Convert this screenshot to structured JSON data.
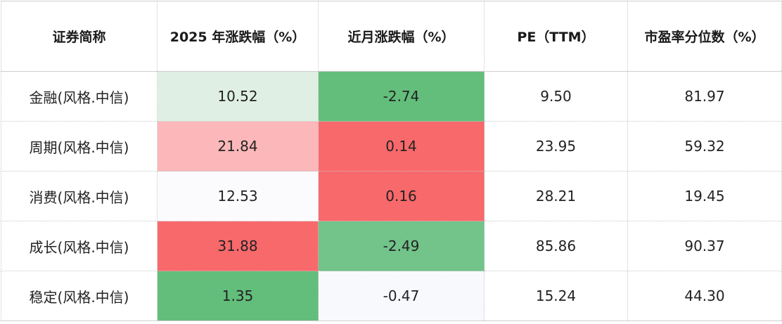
{
  "headers": [
    "证券简称",
    "2025 年涨跌幅（%）",
    "近月涨跌幅（%）",
    "PE（TTM）",
    "市盈率分位数（%）"
  ],
  "rows": [
    {
      "name": "金融(风格.中信)",
      "ytd": "10.52",
      "month": "-2.74",
      "pe": "9.50",
      "pct": "81.97",
      "ytd_color": "#e0efe4",
      "month_color": "#63be7b"
    },
    {
      "name": "周期(风格.中信)",
      "ytd": "21.84",
      "month": "0.14",
      "pe": "23.95",
      "pct": "59.32",
      "ytd_color": "#fbb7b9",
      "month_color": "#f8696b"
    },
    {
      "name": "消费(风格.中信)",
      "ytd": "12.53",
      "month": "0.16",
      "pe": "28.21",
      "pct": "19.45",
      "ytd_color": "#fbfbfe",
      "month_color": "#f8696b"
    },
    {
      "name": "成长(风格.中信)",
      "ytd": "31.88",
      "month": "-2.49",
      "pe": "85.86",
      "pct": "90.37",
      "ytd_color": "#f8696b",
      "month_color": "#72c48a"
    },
    {
      "name": "稳定(风格.中信)",
      "ytd": "1.35",
      "month": "-0.47",
      "pe": "15.24",
      "pct": "44.30",
      "ytd_color": "#63be7b",
      "month_color": "#f8f9fd"
    }
  ]
}
